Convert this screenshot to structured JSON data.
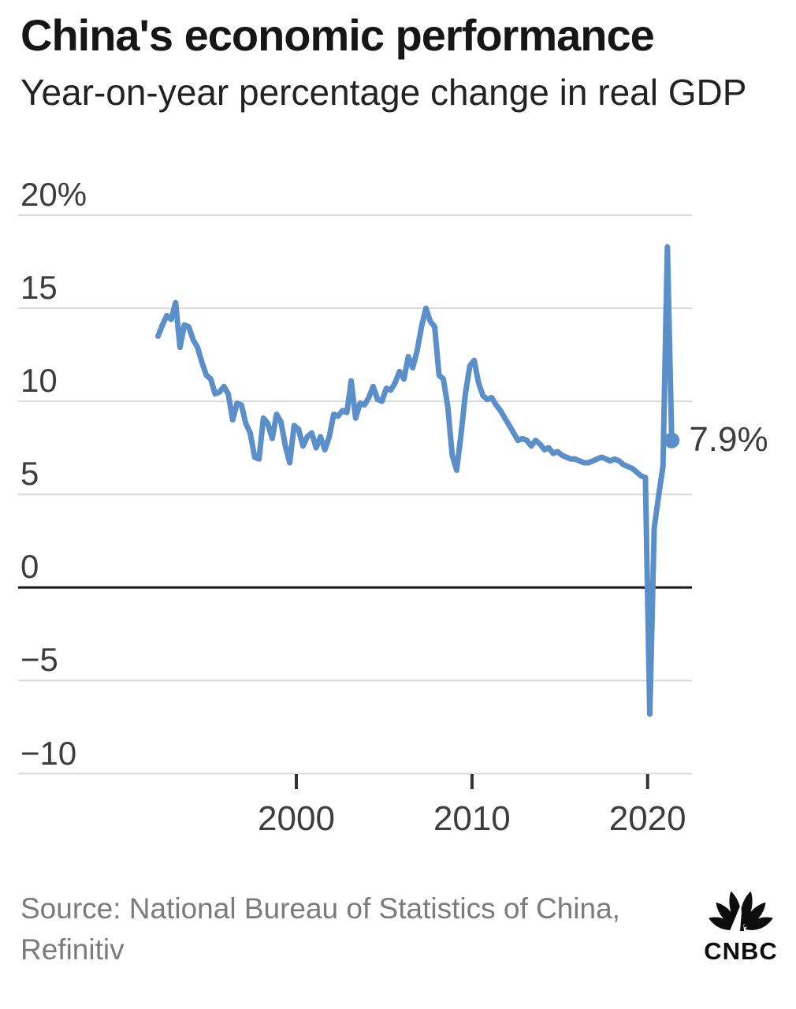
{
  "header": {
    "title": "China's economic performance",
    "subtitle": "Year-on-year percentage change in real GDP"
  },
  "chart_data": {
    "type": "line",
    "title": "China's economic performance",
    "subtitle": "Year-on-year percentage change in real GDP",
    "grid": true,
    "legend": "none",
    "line_color": "#5b8fc9",
    "zero_line_color": "#1a1a1a",
    "grid_color": "#d9d9d9",
    "ylim": [
      -10,
      20
    ],
    "y_ticks": [
      {
        "value": 20,
        "label": "20%"
      },
      {
        "value": 15,
        "label": "15"
      },
      {
        "value": 10,
        "label": "10"
      },
      {
        "value": 5,
        "label": "5"
      },
      {
        "value": 0,
        "label": "0"
      },
      {
        "value": -5,
        "label": "−5"
      },
      {
        "value": -10,
        "label": "−10"
      }
    ],
    "x_ticks": [
      {
        "value": 2000,
        "label": "2000"
      },
      {
        "value": 2010,
        "label": "2010"
      },
      {
        "value": 2020,
        "label": "2020"
      }
    ],
    "series": [
      {
        "name": "China real GDP, year-on-year % change",
        "frequency": "quarterly",
        "start_year": 1992,
        "start_quarter": 1,
        "values": [
          13.5,
          14.1,
          14.6,
          14.4,
          15.3,
          12.9,
          14.1,
          14.0,
          13.3,
          12.9,
          12.1,
          11.4,
          11.2,
          10.4,
          10.5,
          10.8,
          10.4,
          9.0,
          9.9,
          9.8,
          8.8,
          8.3,
          7.0,
          6.9,
          9.1,
          8.8,
          8.0,
          9.3,
          8.9,
          7.6,
          6.7,
          8.7,
          8.5,
          7.6,
          8.1,
          8.3,
          7.5,
          8.1,
          7.4,
          8.1,
          9.3,
          9.2,
          9.5,
          9.4,
          11.1,
          9.1,
          9.9,
          9.8,
          10.2,
          10.8,
          10.1,
          10.0,
          10.7,
          10.6,
          11.0,
          11.6,
          11.2,
          12.4,
          11.8,
          12.7,
          14.0,
          15.0,
          14.3,
          14.0,
          11.4,
          11.2,
          9.7,
          7.1,
          6.3,
          8.2,
          10.4,
          11.9,
          12.2,
          11.0,
          10.3,
          10.1,
          10.2,
          9.8,
          9.5,
          9.1,
          8.7,
          8.3,
          7.9,
          8.0,
          7.9,
          7.6,
          7.9,
          7.7,
          7.4,
          7.5,
          7.2,
          7.3,
          7.1,
          7.0,
          6.9,
          6.9,
          6.8,
          6.7,
          6.7,
          6.8,
          6.9,
          7.0,
          6.9,
          6.8,
          6.9,
          6.8,
          6.6,
          6.5,
          6.4,
          6.2,
          6.0,
          5.9,
          -6.8,
          3.2,
          4.9,
          6.5,
          18.3,
          7.9
        ]
      }
    ],
    "annotation": {
      "text": "7.9%",
      "value": 7.9
    }
  },
  "footer": {
    "source_line1": "Source: National Bureau of Statistics of China,",
    "source_line2": "Refinitiv",
    "logo_text": "CNBC"
  }
}
